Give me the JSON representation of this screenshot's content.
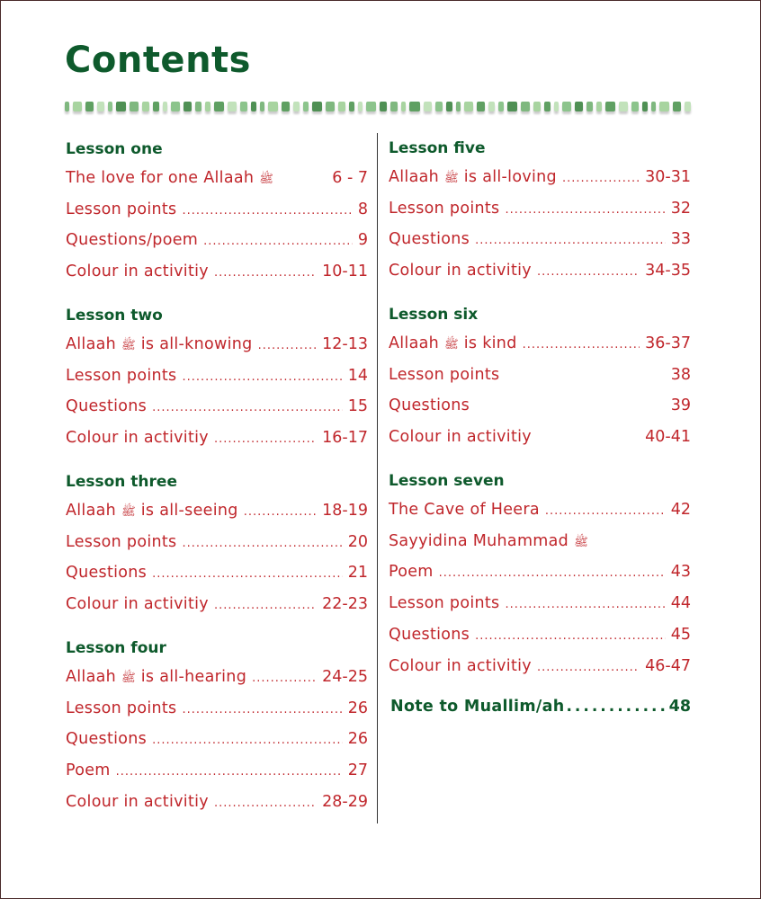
{
  "title": "Contents",
  "colors": {
    "heading": "#0e5a2c",
    "entry": "#c0262b"
  },
  "symbol": "ﷺ",
  "columns": [
    [
      {
        "heading": "Lesson one",
        "items": [
          {
            "label": "The love for one Allaah",
            "symbol": true,
            "page": "6 - 7",
            "leader": false
          },
          {
            "label": "Lesson points",
            "page": "8",
            "leader": true
          },
          {
            "label": "Questions/poem",
            "page": "9",
            "leader": true
          },
          {
            "label": "Colour in activitiy",
            "page": "10-11",
            "leader": true
          }
        ]
      },
      {
        "heading": "Lesson two",
        "items": [
          {
            "label": "Allaah",
            "symbol": true,
            "label2": "is  all-knowing",
            "page": "12-13",
            "leader": true
          },
          {
            "label": "Lesson points",
            "page": "14",
            "leader": true
          },
          {
            "label": "Questions",
            "page": "15",
            "leader": true
          },
          {
            "label": "Colour in activitiy",
            "page": "16-17",
            "leader": true
          }
        ]
      },
      {
        "heading": "Lesson three",
        "items": [
          {
            "label": "Allaah",
            "symbol": true,
            "label2": "is all-seeing",
            "page": "18-19",
            "leader": true
          },
          {
            "label": "Lesson points",
            "page": "20",
            "leader": true
          },
          {
            "label": "Questions",
            "page": "21",
            "leader": true
          },
          {
            "label": "Colour in activitiy",
            "page": "22-23",
            "leader": true
          }
        ]
      },
      {
        "heading": "Lesson four",
        "items": [
          {
            "label": "Allaah",
            "symbol": true,
            "label2": "is all-hearing",
            "page": "24-25",
            "leader": true
          },
          {
            "label": "Lesson points",
            "page": "26",
            "leader": true
          },
          {
            "label": "Questions",
            "page": "26",
            "leader": true
          },
          {
            "label": "Poem",
            "page": "27",
            "leader": true
          },
          {
            "label": "Colour in activitiy",
            "page": "28-29",
            "leader": true
          }
        ]
      }
    ],
    [
      {
        "heading": "Lesson five",
        "items": [
          {
            "label": "Allaah",
            "symbol": true,
            "label2": "is all-loving",
            "page": "30-31",
            "leader": true
          },
          {
            "label": "Lesson points",
            "page": "32",
            "leader": true
          },
          {
            "label": "Questions",
            "page": "33",
            "leader": true
          },
          {
            "label": "Colour in activitiy",
            "page": "34-35",
            "leader": true
          }
        ]
      },
      {
        "heading": "Lesson six",
        "items": [
          {
            "label": "Allaah",
            "symbol": true,
            "label2": "is kind",
            "page": "36-37",
            "leader": true
          },
          {
            "label": "Lesson points",
            "page": "38",
            "leader": false
          },
          {
            "label": "Questions",
            "page": "39",
            "leader": false
          },
          {
            "label": "Colour in activitiy",
            "page": "40-41",
            "leader": false
          }
        ]
      },
      {
        "heading": "Lesson seven",
        "items": [
          {
            "label": "The Cave of Heera",
            "page": "42",
            "leader": true
          },
          {
            "label": "Sayyidina Muhammad",
            "symbol": true,
            "page": "",
            "leader": false
          },
          {
            "label": "Poem",
            "page": "43",
            "leader": true
          },
          {
            "label": "Lesson points",
            "page": "44",
            "leader": true
          },
          {
            "label": "Questions",
            "page": "45",
            "leader": true
          },
          {
            "label": "Colour in activitiy",
            "page": "46-47",
            "leader": true
          }
        ]
      }
    ]
  ],
  "note": {
    "label": "Note to Muallim/ah",
    "page": "48"
  }
}
